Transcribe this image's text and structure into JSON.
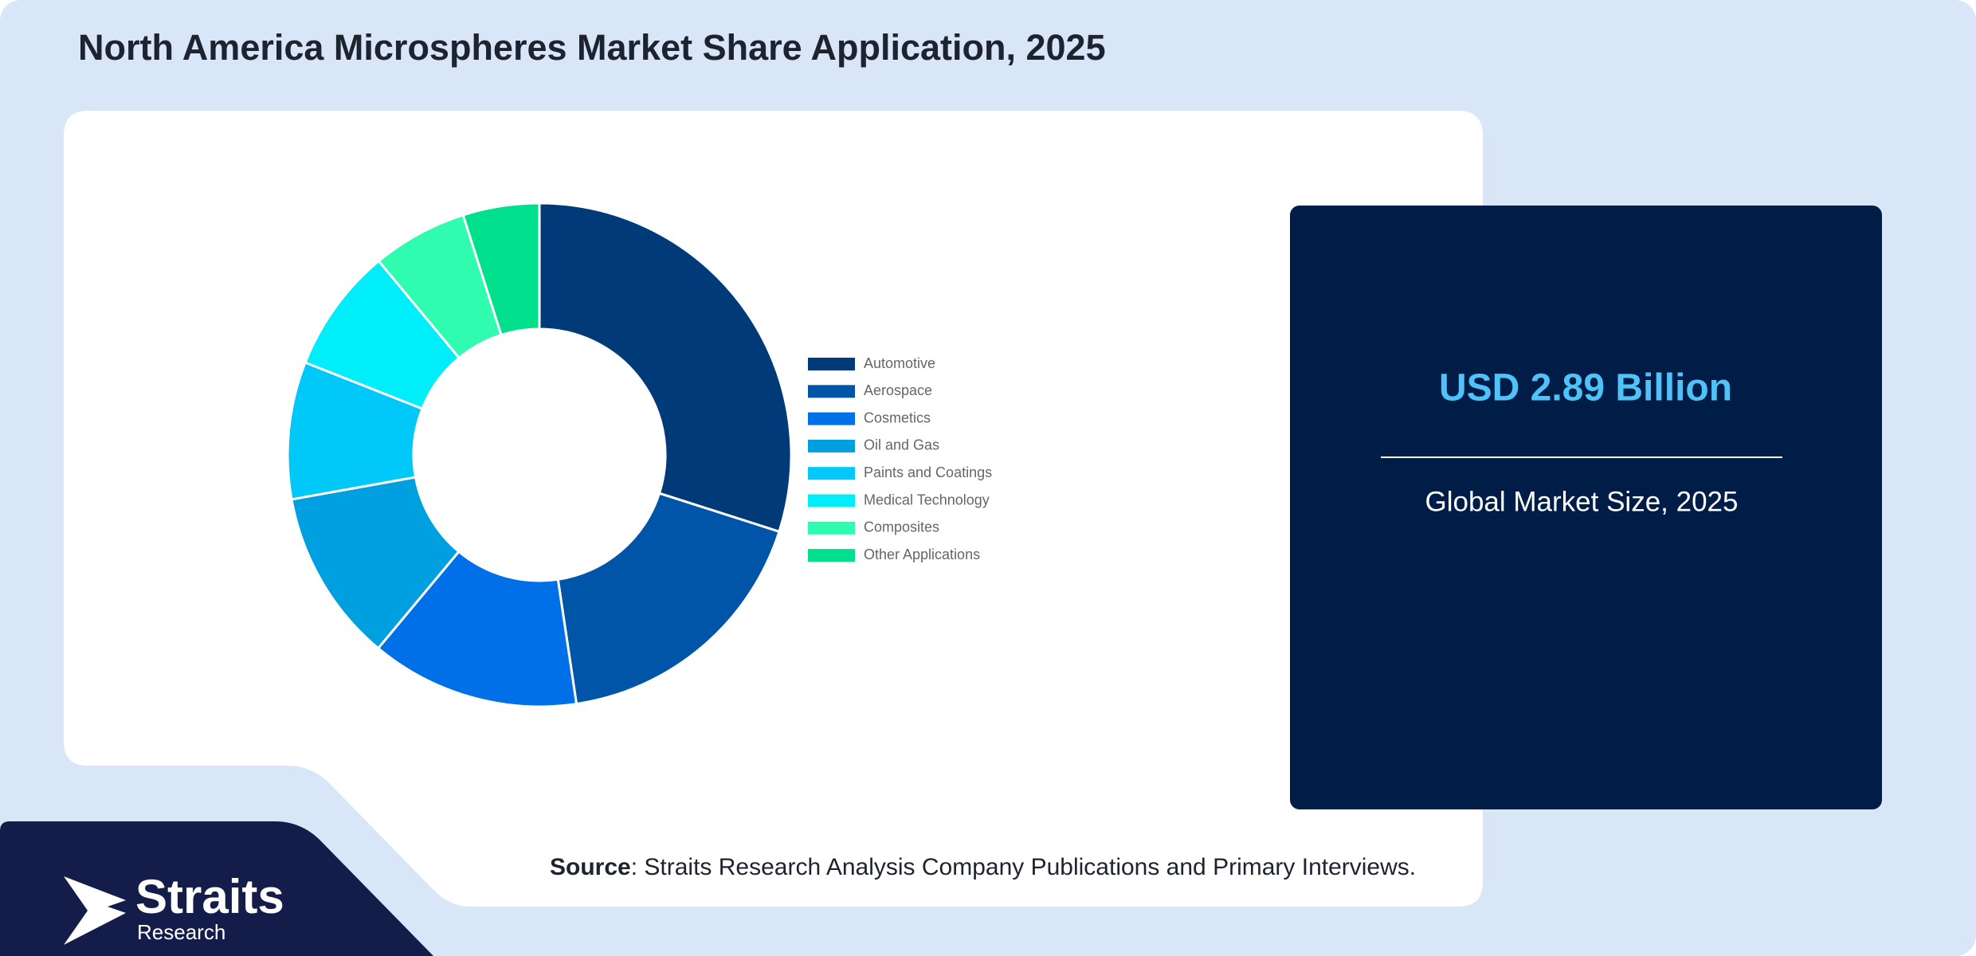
{
  "title": "North America Microspheres Market Share Application, 2025",
  "chart_data": {
    "type": "donut",
    "categories": [
      "Automotive",
      "Aerospace",
      "Cosmetics",
      "Oil and Gas",
      "Paints and Coatings",
      "Medical Technology",
      "Composites",
      "Other Applications"
    ],
    "values": [
      29.9,
      17.7,
      13.4,
      11.1,
      8.8,
      8.0,
      6.1,
      4.9
    ],
    "colors": [
      "#003a78",
      "#0055a8",
      "#0070e8",
      "#00a0e0",
      "#00c8f8",
      "#00eefa",
      "#30fcb0",
      "#00e08c"
    ]
  },
  "panel": {
    "value": "USD 2.89 Billion",
    "caption": "Global Market Size, 2025"
  },
  "source": {
    "label": "Source",
    "text": ": Straits Research Analysis Company Publications and Primary Interviews."
  },
  "logo": {
    "name": "Straits",
    "sub": "Research"
  }
}
